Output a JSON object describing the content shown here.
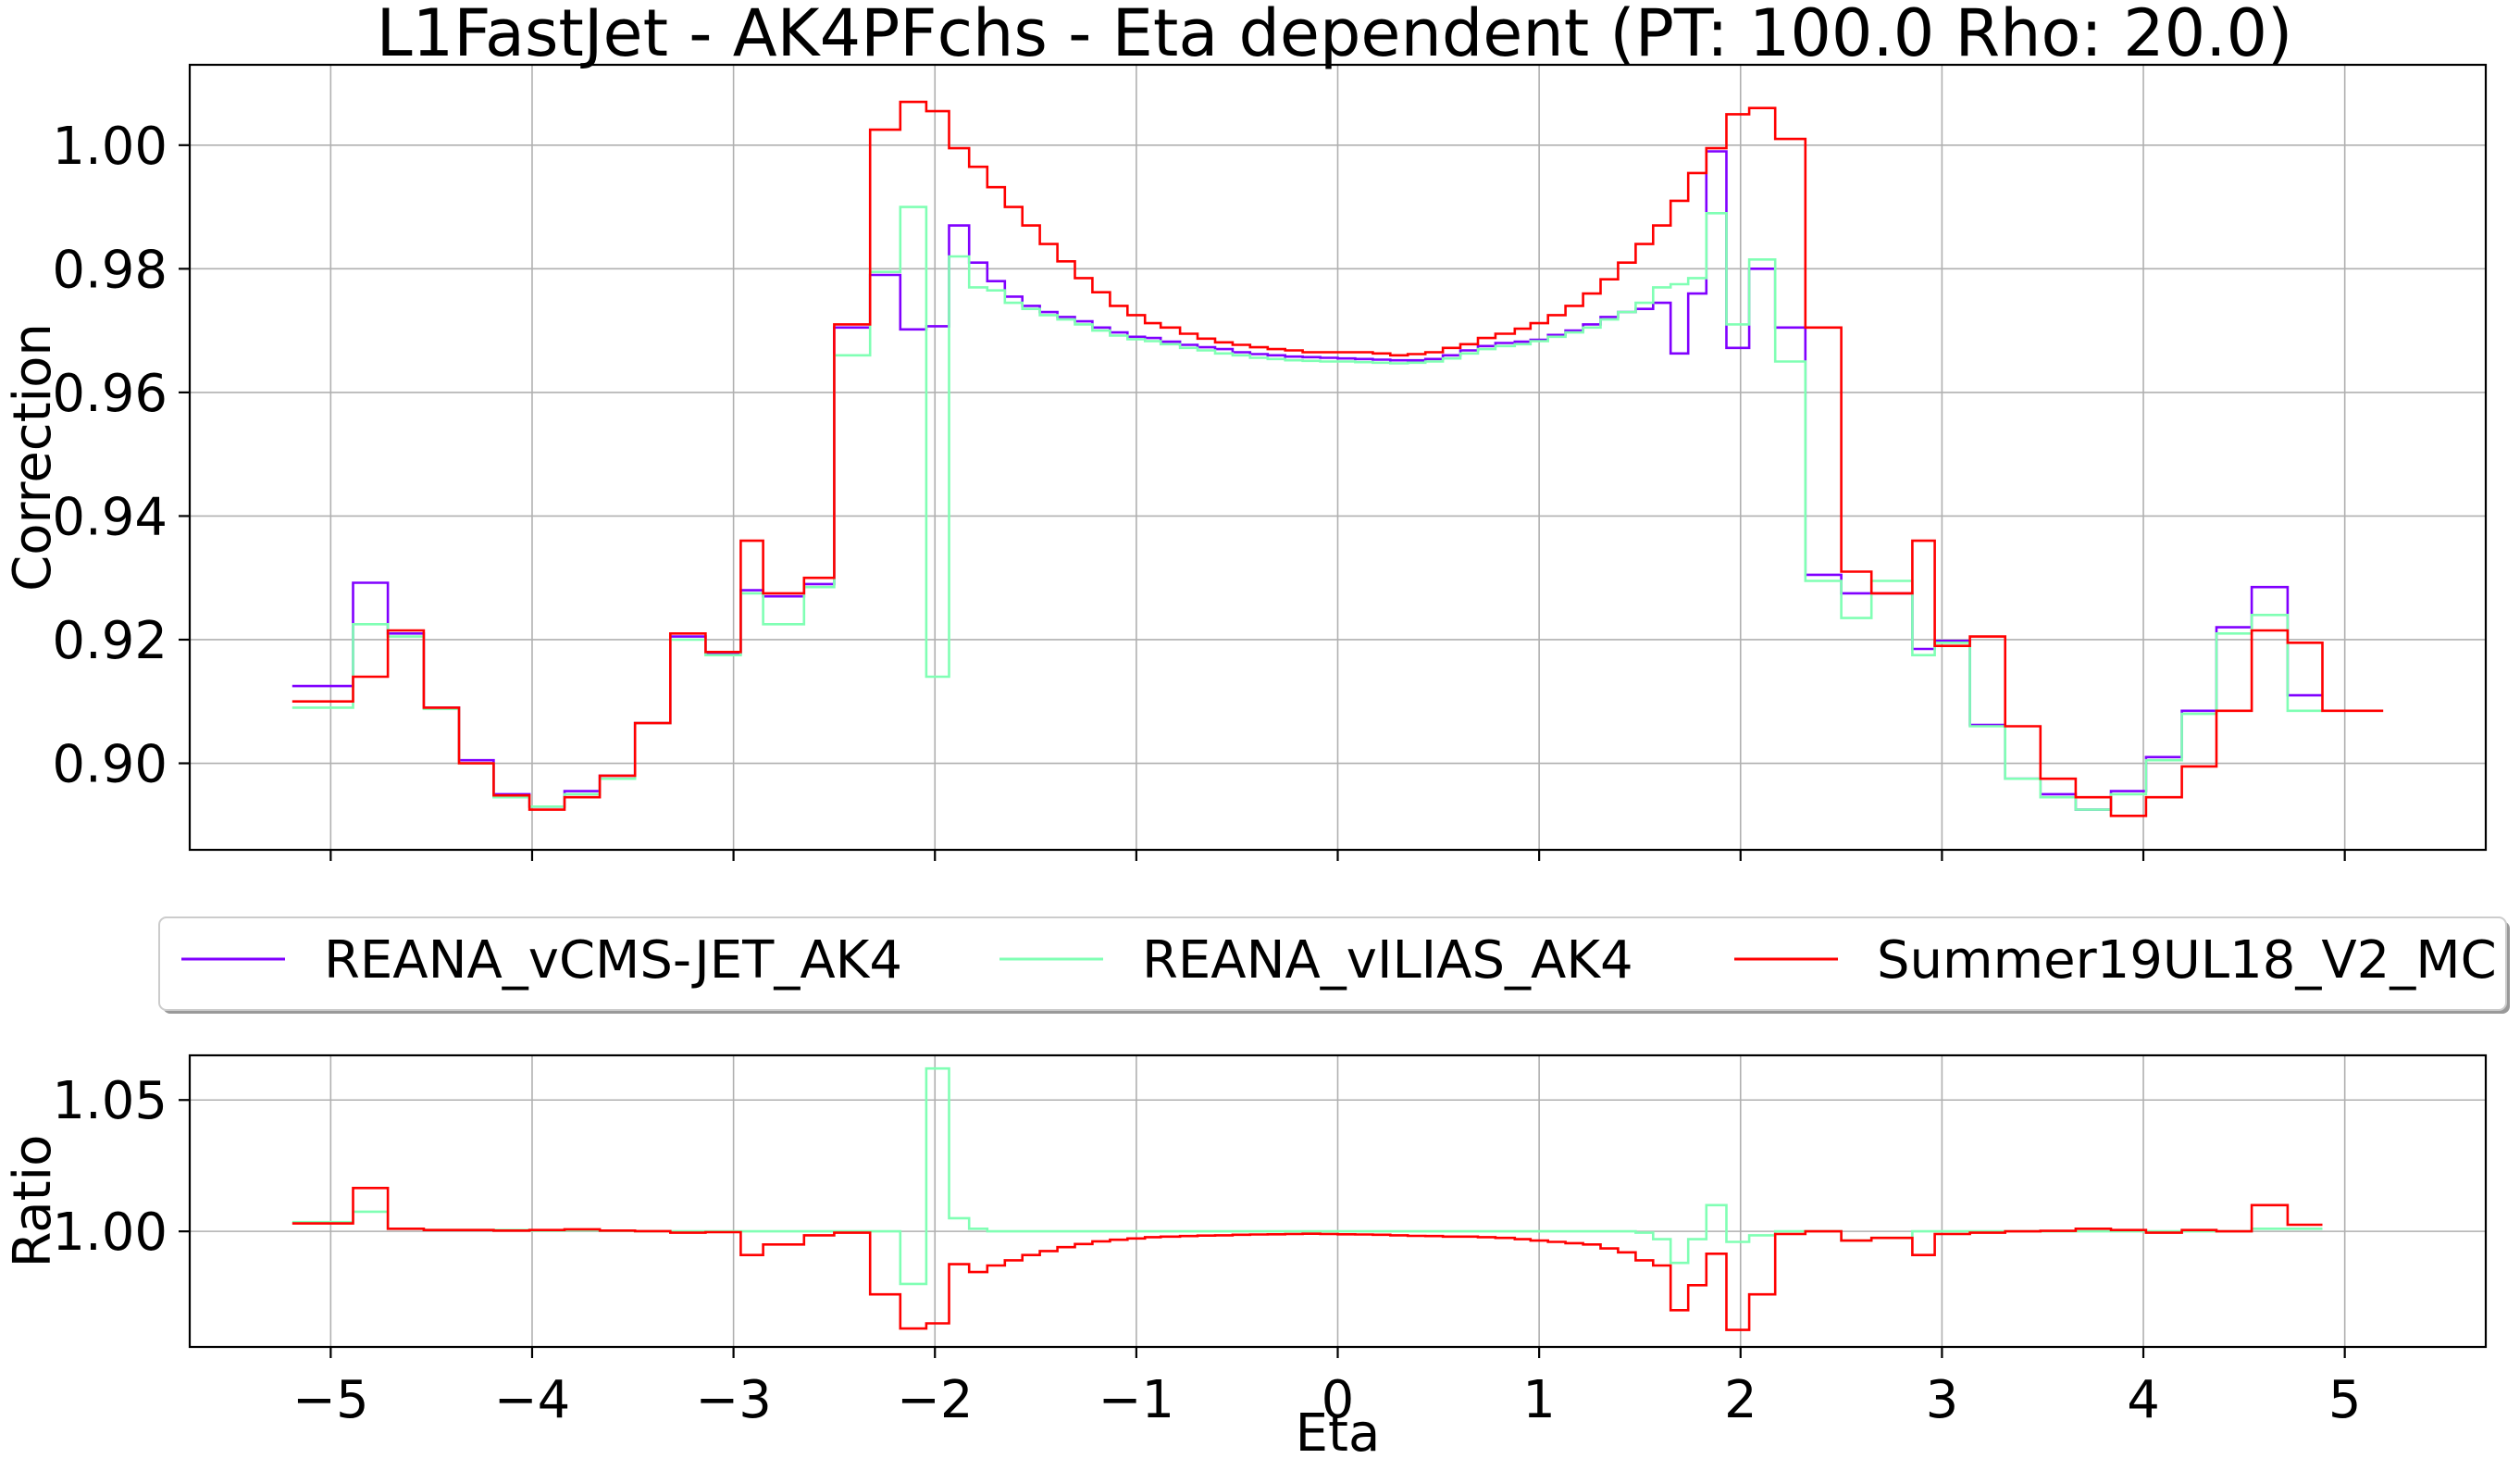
{
  "chart_data": [
    {
      "id": "top",
      "type": "line",
      "title": "L1FastJet - AK4PFchs - Eta dependent (PT: 100.0 Rho: 20.0)",
      "xlabel": "",
      "ylabel": "Correction",
      "xlim": [
        -5.7,
        5.7
      ],
      "ylim": [
        0.886,
        1.013
      ],
      "xticks": [
        -5,
        -4,
        -3,
        -2,
        -1,
        0,
        1,
        2,
        3,
        4,
        5
      ],
      "yticks": [
        0.9,
        0.92,
        0.94,
        0.96,
        0.98,
        1.0
      ],
      "ytick_labels": [
        "0.90",
        "0.92",
        "0.94",
        "0.96",
        "0.98",
        "1.00"
      ],
      "grid": true,
      "edges": [
        -5.191,
        -4.889,
        -4.716,
        -4.538,
        -4.363,
        -4.191,
        -4.013,
        -3.839,
        -3.664,
        -3.489,
        -3.314,
        -3.139,
        -2.964,
        -2.853,
        -2.65,
        -2.5,
        -2.322,
        -2.172,
        -2.043,
        -1.93,
        -1.83,
        -1.74,
        -1.653,
        -1.566,
        -1.479,
        -1.392,
        -1.305,
        -1.218,
        -1.131,
        -1.044,
        -0.957,
        -0.879,
        -0.783,
        -0.696,
        -0.609,
        -0.522,
        -0.435,
        -0.348,
        -0.261,
        -0.174,
        -0.087,
        0,
        0.087,
        0.174,
        0.261,
        0.348,
        0.435,
        0.522,
        0.609,
        0.696,
        0.783,
        0.879,
        0.957,
        1.044,
        1.131,
        1.218,
        1.305,
        1.392,
        1.479,
        1.566,
        1.653,
        1.74,
        1.83,
        1.93,
        2.043,
        2.172,
        2.322,
        2.5,
        2.65,
        2.853,
        2.964,
        3.139,
        3.314,
        3.489,
        3.664,
        3.839,
        4.013,
        4.191,
        4.363,
        4.538,
        4.716,
        4.889,
        5.191
      ],
      "series": [
        {
          "name": "REANA_vCMS-JET_AK4",
          "color": "#8000ff",
          "values": [
            0.9125,
            0.9292,
            0.921,
            0.909,
            0.9005,
            0.895,
            0.893,
            0.8955,
            0.898,
            0.9065,
            0.9205,
            0.9178,
            0.928,
            0.927,
            0.929,
            0.9705,
            0.979,
            0.9702,
            0.9707,
            0.987,
            0.981,
            0.978,
            0.9755,
            0.974,
            0.973,
            0.9722,
            0.9715,
            0.9705,
            0.9697,
            0.969,
            0.9688,
            0.9682,
            0.9677,
            0.9673,
            0.967,
            0.9665,
            0.9662,
            0.966,
            0.9658,
            0.9657,
            0.9656,
            0.9655,
            0.9654,
            0.9653,
            0.9652,
            0.9652,
            0.9654,
            0.966,
            0.9668,
            0.9675,
            0.968,
            0.9682,
            0.9685,
            0.9693,
            0.97,
            0.971,
            0.9722,
            0.973,
            0.9735,
            0.9745,
            0.9663,
            0.976,
            0.999,
            0.9672,
            0.98,
            0.9705,
            0.9305,
            0.9275,
            0.9275,
            0.9185,
            0.9198,
            0.9062,
            0.8975,
            0.895,
            0.8925,
            0.8955,
            0.901,
            0.9085,
            0.922,
            0.9285,
            0.911
          ]
        },
        {
          "name": "REANA_vILIAS_AK4",
          "color": "#80ffb4",
          "values": [
            0.909,
            0.9225,
            0.9205,
            0.9088,
            0.9,
            0.8945,
            0.893,
            0.895,
            0.8975,
            0.9065,
            0.92,
            0.9175,
            0.9275,
            0.9225,
            0.9285,
            0.966,
            0.9795,
            0.99,
            0.914,
            0.982,
            0.977,
            0.9765,
            0.9745,
            0.9735,
            0.9725,
            0.9718,
            0.971,
            0.97,
            0.9692,
            0.9686,
            0.9683,
            0.9678,
            0.9672,
            0.9668,
            0.9663,
            0.966,
            0.9656,
            0.9654,
            0.9652,
            0.9651,
            0.965,
            0.965,
            0.9649,
            0.9648,
            0.9647,
            0.9648,
            0.965,
            0.9655,
            0.9663,
            0.967,
            0.9675,
            0.9678,
            0.9683,
            0.969,
            0.9697,
            0.9705,
            0.9718,
            0.973,
            0.9745,
            0.977,
            0.9775,
            0.9785,
            0.989,
            0.971,
            0.9815,
            0.965,
            0.9295,
            0.9235,
            0.9295,
            0.9175,
            0.9195,
            0.906,
            0.8975,
            0.8945,
            0.8925,
            0.895,
            0.9005,
            0.908,
            0.921,
            0.924,
            0.9085
          ]
        },
        {
          "name": "Summer19UL18_V2_MC",
          "color": "#ff0000",
          "values": [
            0.91,
            0.914,
            0.9215,
            0.909,
            0.9,
            0.8948,
            0.8925,
            0.8945,
            0.898,
            0.9065,
            0.921,
            0.918,
            0.936,
            0.9275,
            0.93,
            0.971,
            1.0025,
            1.007,
            1.0055,
            0.9995,
            0.9965,
            0.9932,
            0.99,
            0.987,
            0.984,
            0.9812,
            0.9785,
            0.9762,
            0.974,
            0.9725,
            0.9712,
            0.9705,
            0.9695,
            0.9687,
            0.9681,
            0.9677,
            0.9673,
            0.967,
            0.9668,
            0.9665,
            0.9665,
            0.9665,
            0.9665,
            0.9663,
            0.966,
            0.9662,
            0.9665,
            0.9672,
            0.9678,
            0.9688,
            0.9695,
            0.9703,
            0.9712,
            0.9725,
            0.974,
            0.976,
            0.9783,
            0.981,
            0.984,
            0.987,
            0.991,
            0.9955,
            0.9995,
            1.005,
            1.006,
            1.001,
            0.9705,
            0.931,
            0.9275,
            0.936,
            0.919,
            0.9205,
            0.906,
            0.8975,
            0.8945,
            0.8915,
            0.8945,
            0.8995,
            0.9085,
            0.9215,
            0.9195,
            0.9085
          ]
        }
      ]
    },
    {
      "id": "bottom",
      "type": "line",
      "title": "",
      "xlabel": "Eta",
      "ylabel": "Ratio",
      "xlim": [
        -5.7,
        5.7
      ],
      "ylim": [
        0.956,
        1.067
      ],
      "xticks": [
        -5,
        -4,
        -3,
        -2,
        -1,
        0,
        1,
        2,
        3,
        4,
        5
      ],
      "xtick_labels": [
        "−5",
        "−4",
        "−3",
        "−2",
        "−1",
        "0",
        "1",
        "2",
        "3",
        "4",
        "5"
      ],
      "yticks": [
        1.0,
        1.05
      ],
      "ytick_labels": [
        "1.00",
        "1.05"
      ],
      "grid": true,
      "series": [
        {
          "name": "REANA_vILIAS_AK4",
          "color": "#80ffb4",
          "values": [
            1.0035,
            1.0075,
            1.001,
            1.0005,
            1.0005,
            1.0005,
            1.0003,
            1.0004,
            1.0002,
            1.0,
            1.0,
            1.0,
            1.0,
            1.0,
            1.0,
            1.0,
            1.0,
            0.98,
            1.062,
            1.005,
            1.001,
            1.0,
            1.0,
            1.0,
            1.0,
            1.0,
            1.0,
            1.0,
            1.0,
            1.0,
            1.0,
            1.0,
            1.0,
            1.0,
            1.0,
            1.0,
            1.0,
            1.0,
            1.0,
            1.0,
            1.0,
            1.0,
            1.0,
            1.0,
            1.0,
            1.0,
            1.0,
            1.0,
            1.0,
            1.0,
            1.0,
            1.0,
            1.0,
            1.0,
            1.0,
            1.0,
            1.0,
            1.0,
            0.9995,
            0.997,
            0.988,
            0.997,
            1.01,
            0.996,
            0.9985,
            1.0,
            1.0,
            0.9965,
            0.9975,
            1.0,
            1.0,
            1.0,
            1.0,
            1.0,
            1.0,
            1.0,
            1.0,
            1.0,
            1.0,
            1.001,
            1.001
          ]
        },
        {
          "name": "Summer19UL18_V2_MC",
          "color": "#ff0000",
          "values": [
            1.003,
            1.0165,
            1.001,
            1.0005,
            1.0005,
            1.0003,
            1.0005,
            1.0008,
            1.0003,
            1.0001,
            0.9995,
            0.9997,
            0.991,
            0.995,
            0.9985,
            0.9995,
            0.976,
            0.963,
            0.965,
            0.9875,
            0.9845,
            0.987,
            0.989,
            0.991,
            0.9925,
            0.994,
            0.9952,
            0.9962,
            0.9968,
            0.9973,
            0.9978,
            0.998,
            0.9982,
            0.9984,
            0.9985,
            0.9987,
            0.9988,
            0.9989,
            0.999,
            0.9991,
            0.999,
            0.9989,
            0.9988,
            0.9987,
            0.9985,
            0.9983,
            0.9982,
            0.998,
            0.998,
            0.9978,
            0.9975,
            0.997,
            0.9965,
            0.996,
            0.9955,
            0.995,
            0.9935,
            0.992,
            0.989,
            0.987,
            0.97,
            0.9795,
            0.9915,
            0.9625,
            0.976,
            0.999,
            1.0,
            0.9965,
            0.9975,
            0.991,
            0.999,
            0.9995,
            1.0,
            1.0002,
            1.001,
            1.0005,
            0.9995,
            1.0005,
            1.0,
            1.01,
            1.0025
          ]
        }
      ]
    }
  ],
  "legend": {
    "placement": "between-panels",
    "entries": [
      {
        "label": "REANA_vCMS-JET_AK4",
        "color": "#8000ff"
      },
      {
        "label": "REANA_vILIAS_AK4",
        "color": "#80ffb4"
      },
      {
        "label": "Summer19UL18_V2_MC",
        "color": "#ff0000"
      }
    ]
  }
}
